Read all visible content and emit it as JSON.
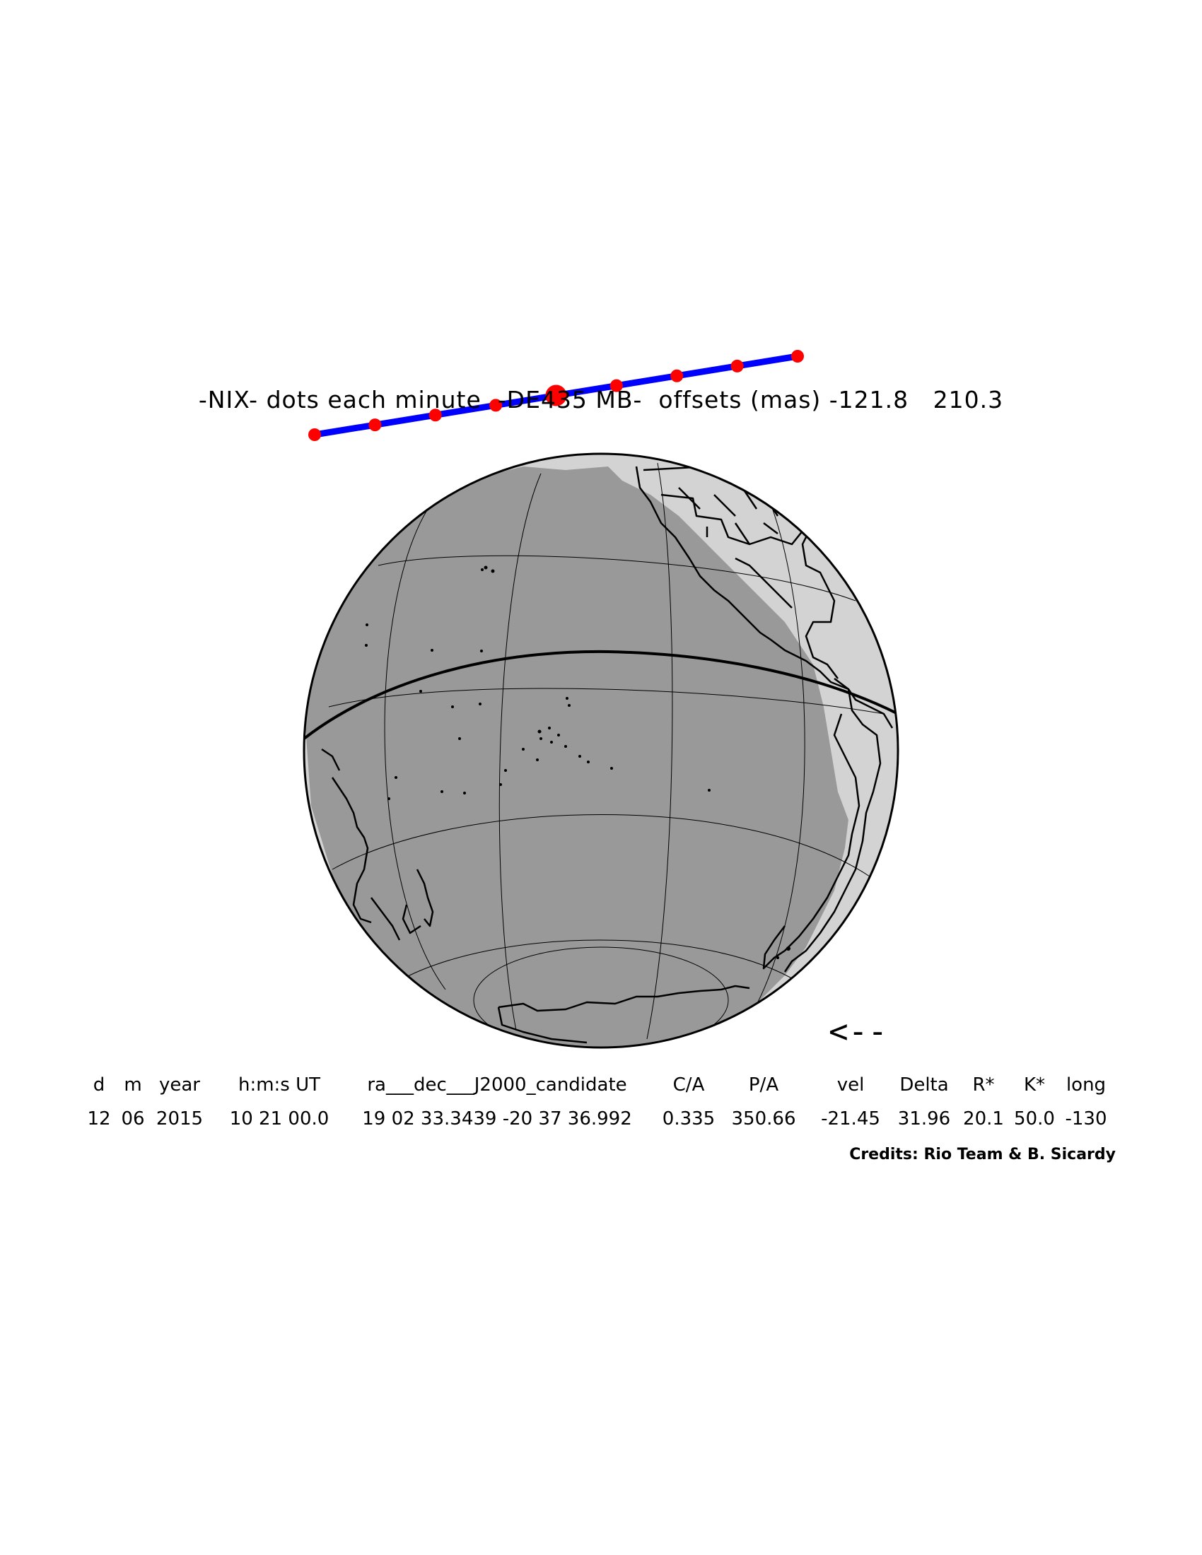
{
  "title": "-NIX- dots each minute  -DE435 MB-  offsets (mas) -121.8   210.3",
  "direction_indicator": "<--",
  "credits": "Credits: Rio Team & B. Sicardy",
  "table": {
    "headers": [
      "d",
      "m",
      "year",
      "h:m:s UT",
      "ra___dec___J2000_candidate",
      "C/A",
      "P/A",
      "vel",
      "Delta",
      "R*",
      "K*",
      "long"
    ],
    "values": [
      "12",
      "06",
      "2015",
      "10 21 00.0",
      "19 02 33.3439 -20 37 36.992",
      "0.335",
      "350.66",
      "-21.45",
      "31.96",
      "20.1",
      "50.0",
      "-130"
    ]
  },
  "colors": {
    "shadow": "#999999",
    "penumbra": "#d3d3d3",
    "track": "#0000ff",
    "dots": "#ff0000",
    "outline": "#000000"
  },
  "track": {
    "dot_count": 9,
    "closest_approach_index": 4
  }
}
